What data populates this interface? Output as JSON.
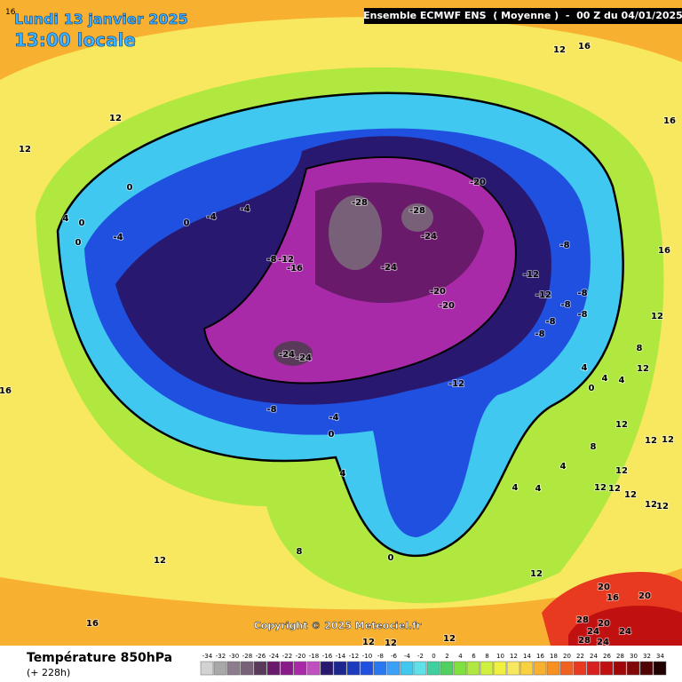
{
  "title": {
    "date": "Lundi 13 janvier 2025",
    "time": "13:00 locale",
    "corner": "16"
  },
  "header": "Ensemble ECMWF ENS  ( Moyenne )  -  00 Z du 04/01/2025",
  "copyright": "Copyright © 2025 Meteociel.fr",
  "contour_labels": [
    "12",
    "16",
    "12",
    "12",
    "16",
    "0",
    "-20",
    "-28",
    "-28",
    "-24",
    "-4",
    "-4",
    "0",
    "-4",
    "4",
    "0",
    "0",
    "-8",
    "16",
    "-8",
    "-12",
    "-16",
    "-24",
    "-12",
    "-20",
    "-12",
    "-8",
    "-20",
    "-8",
    "-8",
    "-8",
    "-8",
    "12",
    "-24",
    "-24",
    "8",
    "4",
    "12",
    "0",
    "4",
    "4",
    "16",
    "-12",
    "-8",
    "-4",
    "12",
    "0",
    "8",
    "12",
    "12",
    "4",
    "4",
    "12",
    "4",
    "4",
    "12",
    "12",
    "12",
    "12",
    "12",
    "8",
    "12",
    "0",
    "12",
    "20",
    "20",
    "16",
    "16",
    "28",
    "20",
    "24",
    "24",
    "12",
    "12",
    "28",
    "24",
    "12"
  ],
  "legend": {
    "title": "Température 850hPa",
    "lead_time": "(+ 228h)",
    "ticks": [
      -34,
      -32,
      -30,
      -28,
      -26,
      -24,
      -22,
      -20,
      -18,
      -16,
      -14,
      -12,
      -10,
      -8,
      -6,
      -4,
      -2,
      0,
      2,
      4,
      6,
      8,
      10,
      12,
      14,
      16,
      18,
      20,
      22,
      24,
      26,
      28,
      30,
      32,
      34
    ],
    "colors": [
      "#d2d2d2",
      "#a8a8a8",
      "#8c7c8c",
      "#786078",
      "#5a3a5a",
      "#6a1a6a",
      "#8a1a8a",
      "#a82aa8",
      "#c050c0",
      "#281870",
      "#1c2890",
      "#1c3cc0",
      "#2050e0",
      "#2a78f0",
      "#3aa0f8",
      "#40c8f0",
      "#60e0e8",
      "#40d0a0",
      "#50d060",
      "#80e040",
      "#b0e840",
      "#d0f040",
      "#f0f040",
      "#f8e860",
      "#f8d040",
      "#f8b030",
      "#f89020",
      "#f06020",
      "#e83a20",
      "#d82020",
      "#c01010",
      "#a00808",
      "#800808",
      "#500404",
      "#200000"
    ]
  }
}
